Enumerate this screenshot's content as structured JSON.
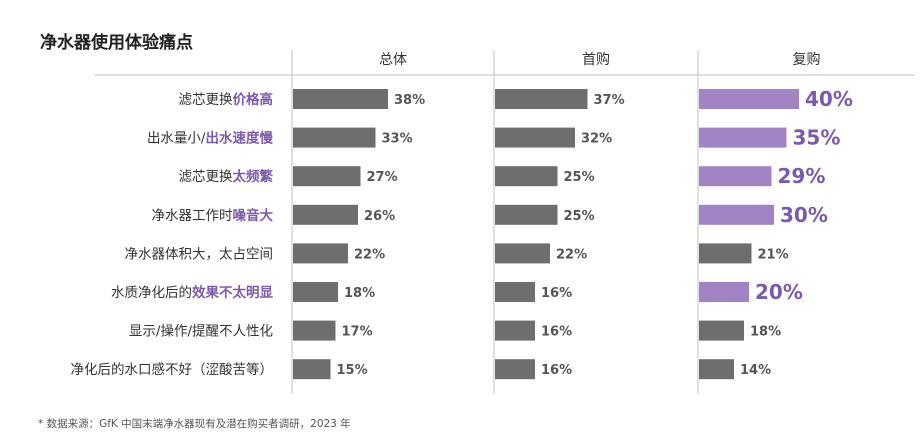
{
  "title": "净水器使用体验痛点",
  "footnote": "*   数据来源：GfK 中国末端净水器现有及潜在购买者调研，2023 年",
  "colors": {
    "bar": "#6e6e6e",
    "highlight": "#a084c4",
    "highlight_text": "#7a5aad",
    "axis": "#c0c0c0"
  },
  "chart_data": {
    "type": "bar",
    "orientation": "horizontal",
    "value_unit": "%",
    "categories": [
      {
        "parts": [
          {
            "text": "滤芯更换",
            "strong": false
          },
          {
            "text": "价格高",
            "strong": true
          }
        ]
      },
      {
        "parts": [
          {
            "text": "出水量小/",
            "strong": false
          },
          {
            "text": "出水速度慢",
            "strong": true
          }
        ]
      },
      {
        "parts": [
          {
            "text": "滤芯更换",
            "strong": false
          },
          {
            "text": "太频繁",
            "strong": true
          }
        ]
      },
      {
        "parts": [
          {
            "text": "净水器工作时",
            "strong": false
          },
          {
            "text": "噪音大",
            "strong": true
          }
        ]
      },
      {
        "parts": [
          {
            "text": "净水器体积大，太占空间",
            "strong": false
          }
        ]
      },
      {
        "parts": [
          {
            "text": "水质净化后的",
            "strong": false
          },
          {
            "text": "效果不太明显",
            "strong": true
          }
        ]
      },
      {
        "parts": [
          {
            "text": "显示/操作/提醒不人性化",
            "strong": false
          }
        ]
      },
      {
        "parts": [
          {
            "text": "净化后的水口感不好（涩酸苦等）",
            "strong": false
          }
        ]
      }
    ],
    "series": [
      {
        "name": "总体",
        "values": [
          38,
          33,
          27,
          26,
          22,
          18,
          17,
          15
        ],
        "highlight": [
          false,
          false,
          false,
          false,
          false,
          false,
          false,
          false
        ]
      },
      {
        "name": "首购",
        "values": [
          37,
          32,
          25,
          25,
          22,
          16,
          16,
          16
        ],
        "highlight": [
          false,
          false,
          false,
          false,
          false,
          false,
          false,
          false
        ]
      },
      {
        "name": "复购",
        "values": [
          40,
          35,
          29,
          30,
          21,
          20,
          18,
          14
        ],
        "highlight": [
          true,
          true,
          true,
          true,
          false,
          true,
          false,
          false
        ]
      }
    ],
    "xlim": [
      0,
      100
    ]
  }
}
